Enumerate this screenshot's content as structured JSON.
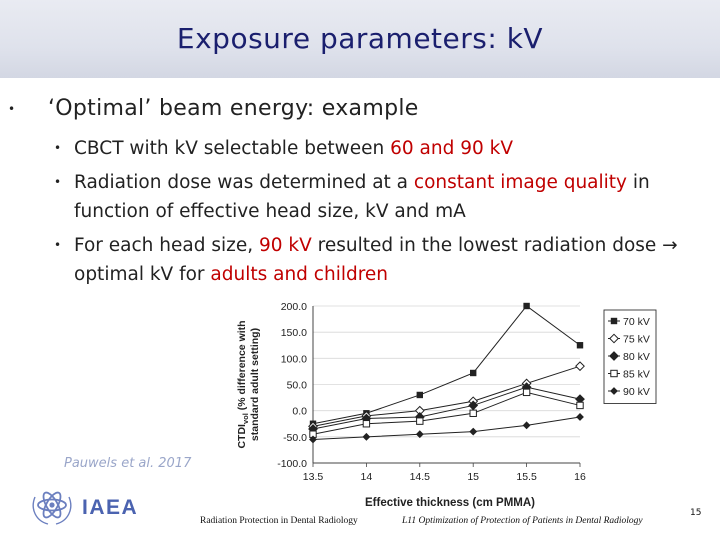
{
  "header": {
    "title": "Exposure parameters: kV"
  },
  "bullet_main": "‘Optimal’ beam energy: example",
  "bullets": [
    {
      "parts": [
        {
          "text": "CBCT with kV selectable between ",
          "red": false
        },
        {
          "text": "60 and 90 kV",
          "red": true
        }
      ]
    },
    {
      "parts": [
        {
          "text": "Radiation dose was determined at a ",
          "red": false
        },
        {
          "text": "constant image quality",
          "red": true
        },
        {
          "text": " in function of effective head size, kV and mA",
          "red": false
        }
      ]
    },
    {
      "parts": [
        {
          "text": "For each head size, ",
          "red": false
        },
        {
          "text": "90 kV",
          "red": true
        },
        {
          "text": " resulted in the lowest radiation dose → optimal kV for ",
          "red": false
        },
        {
          "text": "adults and children",
          "red": true
        }
      ]
    }
  ],
  "chart_data": {
    "type": "line",
    "xlabel": "Effective thickness (cm PMMA)",
    "ylabel_line1": "CTDI",
    "ylabel_sub": "vol",
    "ylabel_line1_rest": " (% difference with",
    "ylabel_line2": "standard adult setting)",
    "x": [
      13.5,
      14,
      14.5,
      15,
      15.5,
      16
    ],
    "xticks": [
      "13.5",
      "14",
      "14.5",
      "15",
      "15.5",
      "16"
    ],
    "xlim": [
      13.5,
      16
    ],
    "ylim": [
      -100,
      200
    ],
    "yticks": [
      "-100.0",
      "-50.0",
      "0.0",
      "50.0",
      "100.0",
      "150.0",
      "200.0"
    ],
    "ytick_values": [
      -100,
      -50,
      0,
      50,
      100,
      150,
      200
    ],
    "legend_position": "right",
    "series": [
      {
        "name": "70 kV",
        "values": [
          -25,
          -5,
          30,
          72,
          200,
          125
        ],
        "marker": "square-filled"
      },
      {
        "name": "75 kV",
        "values": [
          -30,
          -10,
          0,
          18,
          52,
          85
        ],
        "marker": "diamond-open"
      },
      {
        "name": "80 kV",
        "values": [
          -35,
          -15,
          -12,
          10,
          45,
          22
        ],
        "marker": "diamond-filled"
      },
      {
        "name": "85 kV",
        "values": [
          -45,
          -25,
          -20,
          -5,
          35,
          10
        ],
        "marker": "square-open"
      },
      {
        "name": "90 kV",
        "values": [
          -55,
          -50,
          -45,
          -40,
          -28,
          -12
        ],
        "marker": "diamond-small"
      }
    ]
  },
  "citation": "Pauwels et al. 2017",
  "logo_text": "IAEA",
  "footer": {
    "left": "Radiation Protection in Dental Radiology",
    "right": "L11 Optimization of Protection of Patients in Dental Radiology",
    "page": "15"
  }
}
